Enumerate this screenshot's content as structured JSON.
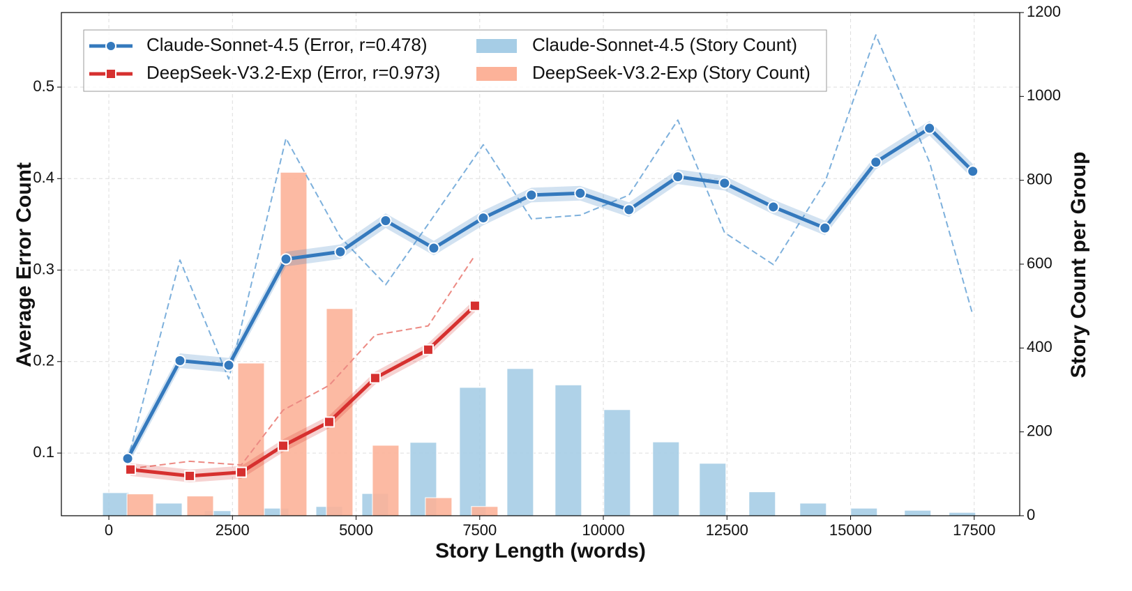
{
  "chart_data": {
    "type": "combo",
    "x_label": "Story Length (words)",
    "y_label": "Average Error Count",
    "y2_label": "Story Count per Group",
    "xlim": [
      -960,
      18420
    ],
    "xticks": [
      0,
      2500,
      5000,
      7500,
      10000,
      12500,
      15000,
      17500
    ],
    "ylim": [
      0.0315,
      0.5815
    ],
    "yticks": [
      0.1,
      0.2,
      0.3,
      0.4,
      0.5
    ],
    "y2lim": [
      0,
      1200
    ],
    "y2ticks": [
      0,
      200,
      400,
      600,
      800,
      1000,
      1200
    ],
    "grid": true,
    "legend": "upper left",
    "series": [
      {
        "name": "Claude-Sonnet-4.5 (Error, r=0.478)",
        "type": "line",
        "axis": "y",
        "color": "#3479bd",
        "marker": "circle",
        "ci": 0.008,
        "x": [
          381,
          1438,
          2425,
          3582,
          4681,
          5598,
          6571,
          7572,
          8545,
          9532,
          10519,
          11506,
          12451,
          13438,
          14481,
          15511,
          16596,
          17471
        ],
        "values": [
          0.094,
          0.201,
          0.196,
          0.312,
          0.32,
          0.354,
          0.324,
          0.357,
          0.382,
          0.384,
          0.366,
          0.402,
          0.395,
          0.369,
          0.346,
          0.418,
          0.455,
          0.408
        ]
      },
      {
        "name": "DeepSeek-V3.2-Exp (Error, r=0.973)",
        "type": "line",
        "axis": "y",
        "color": "#d6302f",
        "marker": "square",
        "ci": 0.007,
        "x": [
          437,
          1636,
          2679,
          3525,
          4455,
          5386,
          6458,
          7403
        ],
        "values": [
          0.082,
          0.075,
          0.079,
          0.108,
          0.134,
          0.182,
          0.213,
          0.261
        ]
      },
      {
        "name": "Claude-Sonnet-4.5 (Story Count)",
        "type": "bar",
        "axis": "y2",
        "color": "#a6cde6",
        "x": [
          141,
          1213,
          2200,
          3370,
          4456,
          5386,
          6359,
          7360,
          8319,
          9292,
          10279,
          11266,
          12211,
          13212,
          14242,
          15271,
          16357,
          17259
        ],
        "values": [
          55,
          30,
          12,
          18,
          22,
          53,
          175,
          306,
          351,
          312,
          253,
          176,
          125,
          57,
          30,
          18,
          13,
          8
        ]
      },
      {
        "name": "DeepSeek-V3.2-Exp (Story Count)",
        "type": "bar",
        "axis": "y2",
        "color": "#fcb299",
        "x": [
          635,
          1847,
          2876,
          3736,
          4667,
          5598,
          6669,
          7600
        ],
        "values": [
          52,
          47,
          364,
          819,
          494,
          168,
          43,
          22
        ]
      },
      {
        "type": "line",
        "axis": "y",
        "color": "#7db0dc",
        "dashed": true,
        "x": [
          381,
          1438,
          2425,
          3582,
          4681,
          5598,
          6571,
          7572,
          8545,
          9532,
          10519,
          11506,
          12451,
          13438,
          14481,
          15511,
          16596,
          17471
        ],
        "values": [
          0.092,
          0.311,
          0.181,
          0.444,
          0.336,
          0.284,
          0.359,
          0.437,
          0.356,
          0.36,
          0.382,
          0.464,
          0.341,
          0.306,
          0.396,
          0.557,
          0.418,
          0.251
        ]
      },
      {
        "type": "line",
        "axis": "y",
        "color": "#ec8a83",
        "dashed": true,
        "x": [
          437,
          1636,
          2679,
          3525,
          4455,
          5386,
          6458,
          7403
        ],
        "values": [
          0.083,
          0.091,
          0.087,
          0.147,
          0.174,
          0.229,
          0.239,
          0.316
        ]
      }
    ]
  }
}
